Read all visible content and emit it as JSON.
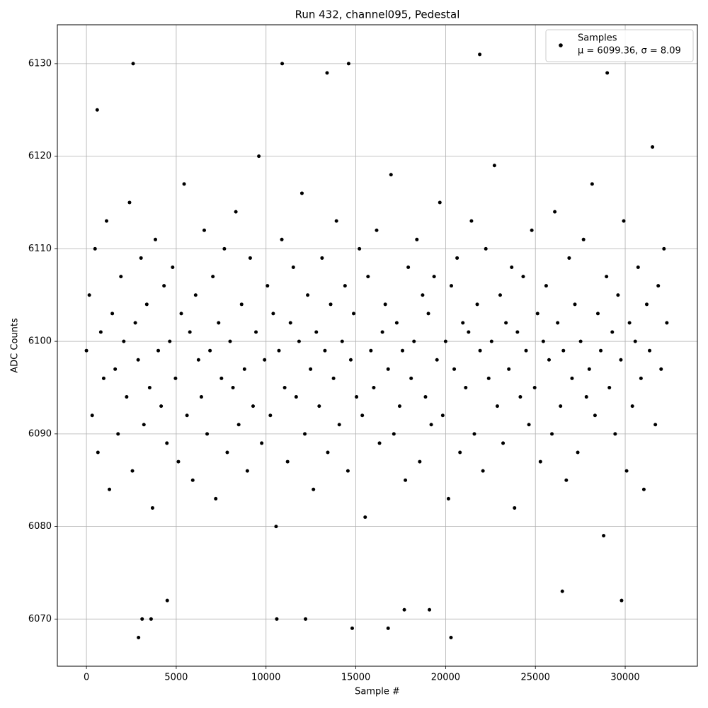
{
  "chart_data": {
    "type": "scatter",
    "title": "Run 432, channel095, Pedestal",
    "xlabel": "Sample #",
    "ylabel": "ADC Counts",
    "xlim": [
      -1620,
      34020
    ],
    "ylim": [
      6064.9,
      6134.2
    ],
    "xticks": [
      0,
      5000,
      10000,
      15000,
      20000,
      25000,
      30000
    ],
    "yticks": [
      6070,
      6080,
      6090,
      6100,
      6110,
      6120,
      6130
    ],
    "grid": true,
    "legend": "upper right",
    "series": [
      {
        "name": "Samples",
        "legend_note": "μ = 6099.36, σ = 8.09",
        "color": "#000000",
        "x": [
          0,
          160,
          320,
          480,
          640,
          800,
          960,
          1120,
          1280,
          1440,
          1600,
          1760,
          1920,
          2080,
          2240,
          2400,
          2560,
          2720,
          2880,
          3040,
          3200,
          3360,
          3520,
          3680,
          3840,
          4000,
          4160,
          4320,
          4480,
          4640,
          4800,
          4960,
          5120,
          5280,
          5440,
          5600,
          5760,
          5920,
          6080,
          6240,
          6400,
          6560,
          6720,
          6880,
          7040,
          7200,
          7360,
          7520,
          7680,
          7840,
          8000,
          8160,
          8320,
          8480,
          8640,
          8800,
          8960,
          9120,
          9280,
          9440,
          9600,
          9760,
          9920,
          10080,
          10240,
          10400,
          10560,
          10720,
          10880,
          11040,
          11200,
          11360,
          11520,
          11680,
          11840,
          12000,
          12160,
          12320,
          12480,
          12640,
          12800,
          12960,
          13120,
          13280,
          13440,
          13600,
          13760,
          13920,
          14080,
          14240,
          14400,
          14560,
          14720,
          14880,
          15040,
          15200,
          15360,
          15520,
          15680,
          15840,
          16000,
          16160,
          16320,
          16480,
          16640,
          16800,
          16960,
          17120,
          17280,
          17440,
          17600,
          17760,
          17920,
          18080,
          18240,
          18400,
          18560,
          18720,
          18880,
          19040,
          19200,
          19360,
          19520,
          19680,
          19840,
          20000,
          20160,
          20320,
          20480,
          20640,
          20800,
          20960,
          21120,
          21280,
          21440,
          21600,
          21760,
          21920,
          22080,
          22240,
          22400,
          22560,
          22720,
          22880,
          23040,
          23200,
          23360,
          23520,
          23680,
          23840,
          24000,
          24160,
          24320,
          24480,
          24640,
          24800,
          24960,
          25120,
          25280,
          25440,
          25600,
          25760,
          25920,
          26080,
          26240,
          26400,
          26560,
          26720,
          26880,
          27040,
          27200,
          27360,
          27520,
          27680,
          27840,
          28000,
          28160,
          28320,
          28480,
          28640,
          28800,
          28960,
          29120,
          29280,
          29440,
          29600,
          29760,
          29920,
          30080,
          30240,
          30400,
          30560,
          30720,
          30880,
          31040,
          31200,
          31360,
          31520,
          31680,
          31840,
          32000,
          32160,
          32320,
          2900,
          20300,
          21900,
          2600,
          10900,
          14600,
          14800,
          16800,
          10600,
          12200,
          3100,
          3600,
          19100,
          17700,
          29800,
          4500,
          13400,
          29000,
          600,
          26500
        ],
        "values": [
          6099,
          6105,
          6092,
          6110,
          6088,
          6101,
          6096,
          6113,
          6084,
          6103,
          6097,
          6090,
          6107,
          6100,
          6094,
          6115,
          6086,
          6102,
          6098,
          6109,
          6091,
          6104,
          6095,
          6082,
          6111,
          6099,
          6093,
          6106,
          6089,
          6100,
          6108,
          6096,
          6087,
          6103,
          6117,
          6092,
          6101,
          6085,
          6105,
          6098,
          6094,
          6112,
          6090,
          6099,
          6107,
          6083,
          6102,
          6096,
          6110,
          6088,
          6100,
          6095,
          6114,
          6091,
          6104,
          6097,
          6086,
          6109,
          6093,
          6101,
          6120,
          6089,
          6098,
          6106,
          6092,
          6103,
          6080,
          6099,
          6111,
          6095,
          6087,
          6102,
          6108,
          6094,
          6100,
          6116,
          6090,
          6105,
          6097,
          6084,
          6101,
          6093,
          6109,
          6099,
          6088,
          6104,
          6096,
          6113,
          6091,
          6100,
          6106,
          6086,
          6098,
          6103,
          6094,
          6110,
          6092,
          6081,
          6107,
          6099,
          6095,
          6112,
          6089,
          6101,
          6104,
          6097,
          6118,
          6090,
          6102,
          6093,
          6099,
          6085,
          6108,
          6096,
          6100,
          6111,
          6087,
          6105,
          6094,
          6103,
          6091,
          6107,
          6098,
          6115,
          6092,
          6100,
          6083,
          6106,
          6097,
          6109,
          6088,
          6102,
          6095,
          6101,
          6113,
          6090,
          6104,
          6099,
          6086,
          6110,
          6096,
          6100,
          6119,
          6093,
          6105,
          6089,
          6102,
          6097,
          6108,
          6082,
          6101,
          6094,
          6107,
          6099,
          6091,
          6112,
          6095,
          6103,
          6087,
          6100,
          6106,
          6098,
          6090,
          6114,
          6102,
          6093,
          6099,
          6085,
          6109,
          6096,
          6104,
          6088,
          6100,
          6111,
          6094,
          6097,
          6117,
          6092,
          6103,
          6099,
          6079,
          6107,
          6095,
          6101,
          6090,
          6105,
          6098,
          6113,
          6086,
          6102,
          6093,
          6100,
          6108,
          6096,
          6084,
          6104,
          6099,
          6121,
          6091,
          6106,
          6097,
          6110,
          6102,
          6068,
          6068,
          6131,
          6130,
          6130,
          6130,
          6069,
          6069,
          6070,
          6070,
          6070,
          6070,
          6071,
          6071,
          6072,
          6072,
          6129,
          6129,
          6125,
          6073
        ]
      }
    ]
  }
}
